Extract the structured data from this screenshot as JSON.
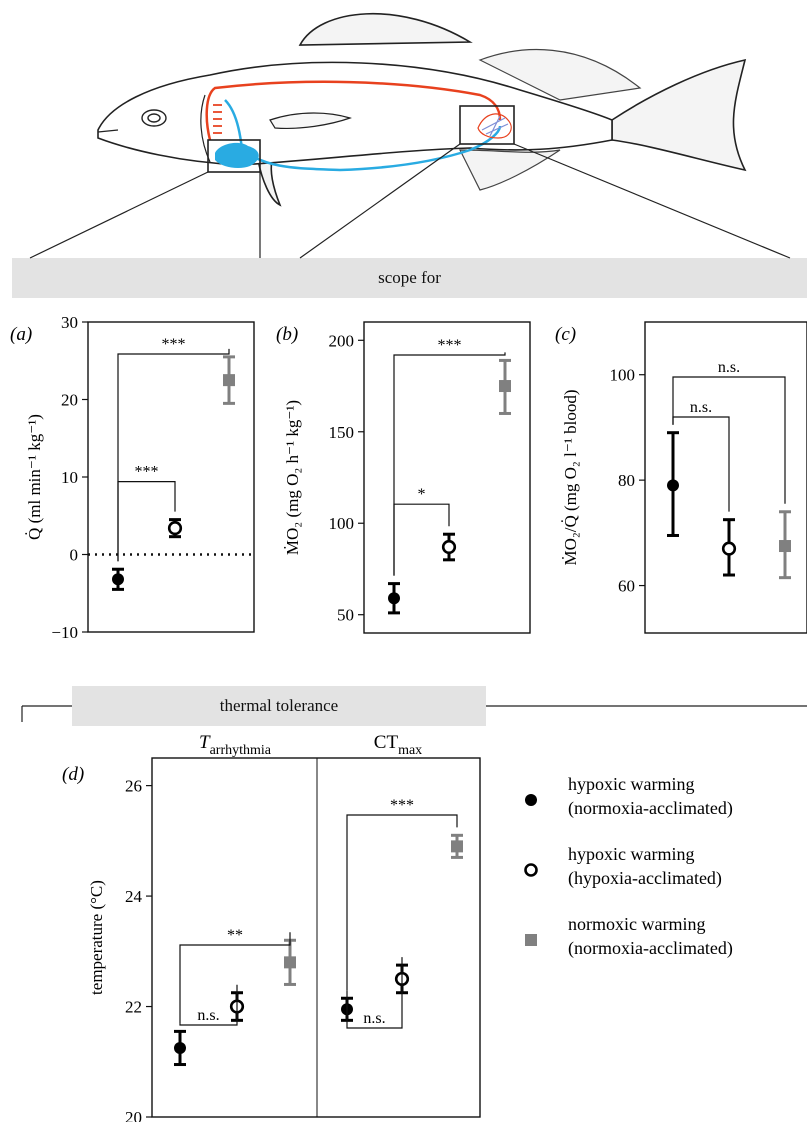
{
  "sections": {
    "scope_label": "scope for",
    "thermal_label": "thermal tolerance"
  },
  "colors": {
    "hypoxic_normoxia": "#000000",
    "hypoxic_hypoxia": "#000000",
    "normoxic": "#808080",
    "arterial": "#e8411e",
    "venous": "#29abe2"
  },
  "legend": [
    {
      "line1": "hypoxic warming",
      "line2": "(normoxia-acclimated)",
      "marker": "filled-circle"
    },
    {
      "line1": "hypoxic warming",
      "line2": "(hypoxia-acclimated)",
      "marker": "open-circle"
    },
    {
      "line1": "normoxic warming",
      "line2": "(normoxia-acclimated)",
      "marker": "gray-square"
    }
  ],
  "chart_data": [
    {
      "panel": "(a)",
      "type": "scatter",
      "ylabel": "Q̇ (ml min⁻¹ kg⁻¹)",
      "ylim": [
        -10,
        30
      ],
      "yticks": [
        -10,
        0,
        10,
        20,
        30
      ],
      "reference_line": 0,
      "points": [
        {
          "group": "hypoxic warming (normoxia-acclimated)",
          "y": -3.2,
          "err_low": -4.5,
          "err_high": -1.9
        },
        {
          "group": "hypoxic warming (hypoxia-acclimated)",
          "y": 3.4,
          "err_low": 2.3,
          "err_high": 4.5
        },
        {
          "group": "normoxic warming (normoxia-acclimated)",
          "y": 22.5,
          "err_low": 19.5,
          "err_high": 25.5
        }
      ],
      "comparisons": [
        {
          "from": 0,
          "to": 1,
          "label": "***"
        },
        {
          "from": 0,
          "to": 2,
          "label": "***"
        }
      ]
    },
    {
      "panel": "(b)",
      "type": "scatter",
      "ylabel": "ṀO₂ (mg O₂ h⁻¹ kg⁻¹)",
      "ylim": [
        40,
        210
      ],
      "yticks": [
        50,
        100,
        150,
        200
      ],
      "points": [
        {
          "group": "hypoxic warming (normoxia-acclimated)",
          "y": 59,
          "err_low": 51,
          "err_high": 67
        },
        {
          "group": "hypoxic warming (hypoxia-acclimated)",
          "y": 87,
          "err_low": 80,
          "err_high": 94
        },
        {
          "group": "normoxic warming (normoxia-acclimated)",
          "y": 175,
          "err_low": 160,
          "err_high": 189
        }
      ],
      "comparisons": [
        {
          "from": 0,
          "to": 1,
          "label": "*"
        },
        {
          "from": 0,
          "to": 2,
          "label": "***"
        }
      ]
    },
    {
      "panel": "(c)",
      "type": "scatter",
      "ylabel": "ṀO₂/Q̇ (mg O₂ l⁻¹ blood)",
      "ylim": [
        51,
        110
      ],
      "yticks": [
        60,
        80,
        100
      ],
      "points": [
        {
          "group": "hypoxic warming (normoxia-acclimated)",
          "y": 79,
          "err_low": 69.5,
          "err_high": 89
        },
        {
          "group": "hypoxic warming (hypoxia-acclimated)",
          "y": 67,
          "err_low": 62,
          "err_high": 72.5
        },
        {
          "group": "normoxic warming (normoxia-acclimated)",
          "y": 67.5,
          "err_low": 61.5,
          "err_high": 74
        }
      ],
      "comparisons": [
        {
          "from": 0,
          "to": 1,
          "label": "n.s."
        },
        {
          "from": 0,
          "to": 2,
          "label": "n.s."
        }
      ]
    },
    {
      "panel": "(d)",
      "type": "scatter",
      "ylabel": "temperature (°C)",
      "ylim": [
        20,
        26.5
      ],
      "yticks": [
        20,
        22,
        24,
        26
      ],
      "subpanels": [
        {
          "title_main": "T",
          "title_sub": "arrhythmia",
          "points": [
            {
              "group": "hypoxic warming (normoxia-acclimated)",
              "y": 21.25,
              "err_low": 20.95,
              "err_high": 21.55
            },
            {
              "group": "hypoxic warming (hypoxia-acclimated)",
              "y": 22.0,
              "err_low": 21.75,
              "err_high": 22.25
            },
            {
              "group": "normoxic warming (normoxia-acclimated)",
              "y": 22.8,
              "err_low": 22.4,
              "err_high": 23.2
            }
          ],
          "comparisons": [
            {
              "from": 0,
              "to": 1,
              "label": "n.s."
            },
            {
              "from": 0,
              "to": 2,
              "label": "**"
            }
          ]
        },
        {
          "title_main": "CT",
          "title_sub": "max",
          "points": [
            {
              "group": "hypoxic warming (normoxia-acclimated)",
              "y": 21.95,
              "err_low": 21.75,
              "err_high": 22.15
            },
            {
              "group": "hypoxic warming (hypoxia-acclimated)",
              "y": 22.5,
              "err_low": 22.25,
              "err_high": 22.75
            },
            {
              "group": "normoxic warming (normoxia-acclimated)",
              "y": 24.9,
              "err_low": 24.7,
              "err_high": 25.1
            }
          ],
          "comparisons": [
            {
              "from": 0,
              "to": 1,
              "label": "n.s."
            },
            {
              "from": 0,
              "to": 2,
              "label": "***"
            }
          ]
        }
      ]
    }
  ]
}
